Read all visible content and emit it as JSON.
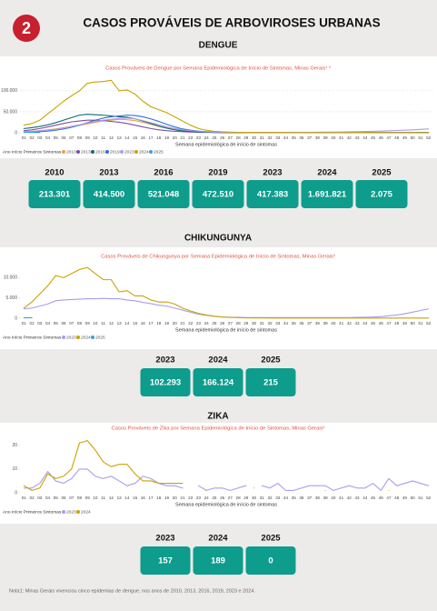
{
  "badge": "2",
  "title": "CASOS PROVÁVEIS DE ARBOVIROSES URBANAS",
  "sections": [
    {
      "heading": "DENGUE",
      "stats": [
        {
          "year": "2010",
          "value": "213.301"
        },
        {
          "year": "2013",
          "value": "414.500"
        },
        {
          "year": "2016",
          "value": "521.048"
        },
        {
          "year": "2019",
          "value": "472.510"
        },
        {
          "year": "2023",
          "value": "417.383"
        },
        {
          "year": "2024",
          "value": "1.691.821"
        },
        {
          "year": "2025",
          "value": "2.075"
        }
      ]
    },
    {
      "heading": "CHIKUNGUNYA",
      "stats": [
        {
          "year": "2023",
          "value": "102.293"
        },
        {
          "year": "2024",
          "value": "166.124"
        },
        {
          "year": "2025",
          "value": "215"
        }
      ]
    },
    {
      "heading": "ZIKA",
      "stats": [
        {
          "year": "2023",
          "value": "157"
        },
        {
          "year": "2024",
          "value": "189"
        },
        {
          "year": "2025",
          "value": "0"
        }
      ]
    }
  ],
  "chart_data": [
    {
      "type": "line",
      "title": "Casos Prováveis de Dengue por Semana Epidemiológica de Início de Sintomas, Minas Gerais¹ ²",
      "x_label": "Semana epidemiológica de início de sintomas",
      "legend_title": "Ano Início Primeiros Sintomas",
      "grid": true,
      "categories": [
        "01",
        "02",
        "03",
        "04",
        "05",
        "06",
        "07",
        "08",
        "09",
        "10",
        "11",
        "12",
        "13",
        "14",
        "15",
        "16",
        "17",
        "18",
        "19",
        "20",
        "21",
        "22",
        "23",
        "24",
        "25",
        "26",
        "27",
        "28",
        "29",
        "30",
        "31",
        "32",
        "33",
        "34",
        "35",
        "36",
        "37",
        "38",
        "39",
        "40",
        "41",
        "42",
        "43",
        "44",
        "45",
        "46",
        "47",
        "48",
        "49",
        "50",
        "51",
        "52"
      ],
      "ylim": [
        0,
        130000
      ],
      "yticks": [
        0,
        {
          "value": 50000,
          "label": "50.000"
        },
        {
          "value": 100000,
          "label": "100.000"
        }
      ],
      "series": [
        {
          "name": "2010",
          "color": "#e8a33d",
          "values": [
            2000,
            3000,
            5000,
            7000,
            9000,
            12000,
            15000,
            18000,
            21000,
            25000,
            28000,
            30000,
            32000,
            31000,
            29000,
            25000,
            20000,
            15000,
            11000,
            8000,
            5000,
            3500,
            2500,
            1800,
            1200,
            900,
            700,
            500,
            400,
            300,
            300,
            250,
            200,
            200,
            200,
            200,
            200,
            200,
            200,
            200,
            200,
            200,
            200,
            200,
            200,
            200,
            250,
            300,
            300,
            350,
            400,
            400
          ]
        },
        {
          "name": "2013",
          "color": "#7b4fa0",
          "values": [
            5000,
            7000,
            10000,
            14000,
            18000,
            22000,
            26000,
            28000,
            30000,
            30000,
            29000,
            27000,
            25000,
            22000,
            18000,
            14000,
            10000,
            7000,
            5000,
            3500,
            2500,
            1800,
            1200,
            900,
            700,
            500,
            400,
            300,
            250,
            200,
            200,
            200,
            200,
            200,
            200,
            200,
            200,
            200,
            200,
            200,
            200,
            200,
            200,
            200,
            200,
            200,
            200,
            200,
            200,
            200,
            200,
            200
          ]
        },
        {
          "name": "2016",
          "color": "#0e6b6b",
          "values": [
            10000,
            12000,
            15000,
            19000,
            24000,
            30000,
            36000,
            42000,
            44000,
            43000,
            42000,
            40000,
            38000,
            37000,
            33000,
            28000,
            22000,
            16000,
            11000,
            7000,
            4500,
            3000,
            2000,
            1400,
            1000,
            700,
            500,
            400,
            300,
            300,
            250,
            250,
            200,
            200,
            200,
            200,
            200,
            200,
            200,
            200,
            200,
            200,
            200,
            200,
            200,
            200,
            200,
            200,
            250,
            250,
            300,
            300
          ]
        },
        {
          "name": "2019",
          "color": "#2f6fd6",
          "values": [
            1000,
            1500,
            2500,
            4000,
            6000,
            9000,
            13000,
            18000,
            24000,
            30000,
            35000,
            38000,
            40000,
            42000,
            41000,
            38000,
            33000,
            27000,
            20000,
            14000,
            9000,
            6000,
            4000,
            2500,
            1700,
            1200,
            800,
            600,
            500,
            400,
            350,
            300,
            300,
            300,
            300,
            300,
            300,
            300,
            300,
            300,
            300,
            300,
            300,
            300,
            300,
            300,
            300,
            300,
            300,
            300,
            300,
            300
          ]
        },
        {
          "name": "2023",
          "color": "#a99cf0",
          "values": [
            3000,
            3500,
            4500,
            6000,
            8000,
            11000,
            15000,
            19000,
            23000,
            27000,
            30000,
            32000,
            34000,
            35000,
            33000,
            29000,
            24000,
            19000,
            14000,
            10000,
            7000,
            5000,
            3500,
            2500,
            1800,
            1300,
            1000,
            800,
            700,
            600,
            600,
            600,
            700,
            800,
            900,
            1000,
            1100,
            1200,
            1400,
            1600,
            1900,
            2200,
            2600,
            3000,
            3500,
            4000,
            4700,
            5400,
            6200,
            7000,
            8000,
            9000
          ]
        },
        {
          "name": "2024",
          "color": "#c9a400",
          "values": [
            18000,
            22000,
            30000,
            45000,
            60000,
            75000,
            88000,
            100000,
            118000,
            121000,
            122000,
            125000,
            100000,
            102000,
            92000,
            75000,
            62000,
            55000,
            48000,
            38000,
            28000,
            18000,
            10000,
            6000,
            3500,
            2200,
            1500,
            1100,
            900,
            800,
            700,
            600,
            600,
            500,
            500,
            500,
            500,
            500,
            500,
            500,
            500,
            500,
            500,
            500,
            500,
            500,
            500,
            500,
            500,
            500,
            500,
            500
          ]
        },
        {
          "name": "2025",
          "color": "#3aa0e0",
          "values": [
            900,
            800,
            300,
            null,
            null,
            null,
            null,
            null,
            null,
            null,
            null,
            null,
            null,
            null,
            null,
            null,
            null,
            null,
            null,
            null,
            null,
            null,
            null,
            null,
            null,
            null,
            null,
            null,
            null,
            null,
            null,
            null,
            null,
            null,
            null,
            null,
            null,
            null,
            null,
            null,
            null,
            null,
            null,
            null,
            null,
            null,
            null,
            null,
            null,
            null,
            null,
            null
          ]
        }
      ]
    },
    {
      "type": "line",
      "title": "Casos Prováveis de Chikungunya por Semana Epidemiológica de Início de Sintomas, Minas Gerais²",
      "x_label": "Semana epidemiológica de início de sintomas",
      "legend_title": "Ano Início Primeiros Sintomas",
      "grid": false,
      "categories": [
        "01",
        "02",
        "03",
        "04",
        "05",
        "06",
        "07",
        "08",
        "09",
        "10",
        "11",
        "12",
        "13",
        "14",
        "15",
        "16",
        "17",
        "18",
        "19",
        "20",
        "21",
        "22",
        "23",
        "24",
        "25",
        "26",
        "27",
        "28",
        "29",
        "30",
        "31",
        "32",
        "33",
        "34",
        "35",
        "36",
        "37",
        "38",
        "39",
        "40",
        "41",
        "42",
        "43",
        "44",
        "45",
        "46",
        "47",
        "48",
        "49",
        "50",
        "51",
        "52"
      ],
      "ylim": [
        0,
        13000
      ],
      "yticks": [
        0,
        {
          "value": 5000,
          "label": "5.000"
        },
        {
          "value": 10000,
          "label": "10.000"
        }
      ],
      "series": [
        {
          "name": "2023",
          "color": "#a99cf0",
          "values": [
            2300,
            2500,
            3000,
            3500,
            4300,
            4500,
            4600,
            4700,
            4800,
            4800,
            4900,
            4800,
            4800,
            4500,
            4300,
            3900,
            3600,
            3200,
            3000,
            2500,
            2000,
            1500,
            1000,
            700,
            500,
            300,
            250,
            200,
            150,
            150,
            150,
            150,
            150,
            150,
            150,
            150,
            150,
            150,
            150,
            150,
            150,
            150,
            200,
            250,
            300,
            400,
            600,
            800,
            1100,
            1500,
            1900,
            2300
          ]
        },
        {
          "name": "2024",
          "color": "#c9a400",
          "values": [
            2500,
            4000,
            6000,
            8000,
            10500,
            10000,
            11000,
            12000,
            12500,
            11000,
            9500,
            9500,
            6500,
            6800,
            5500,
            5500,
            4500,
            4000,
            4000,
            3500,
            2500,
            1800,
            1200,
            800,
            500,
            300,
            200,
            150,
            100,
            80,
            60,
            50,
            50,
            50,
            50,
            50,
            50,
            50,
            50,
            50,
            50,
            50,
            50,
            50,
            50,
            50,
            50,
            50,
            50,
            50,
            50,
            50
          ]
        },
        {
          "name": "2025",
          "color": "#3aa0e0",
          "values": [
            100,
            120,
            null,
            null,
            null,
            null,
            null,
            null,
            null,
            null,
            null,
            null,
            null,
            null,
            null,
            null,
            null,
            null,
            null,
            null,
            null,
            null,
            null,
            null,
            null,
            null,
            null,
            null,
            null,
            null,
            null,
            null,
            null,
            null,
            null,
            null,
            null,
            null,
            null,
            null,
            null,
            null,
            null,
            null,
            null,
            null,
            null,
            null,
            null,
            null,
            null,
            null
          ]
        }
      ]
    },
    {
      "type": "line",
      "title": "Casos Prováveis de Zika por Semana Epidemiológica de Início de Sintomas, Minas Gerais²",
      "x_label": "Semana epidemiológica de início de sintomas",
      "legend_title": "Ano Início Primeiros Sintomas",
      "grid": false,
      "categories": [
        "01",
        "02",
        "03",
        "04",
        "05",
        "06",
        "07",
        "08",
        "09",
        "10",
        "11",
        "12",
        "13",
        "14",
        "15",
        "16",
        "17",
        "18",
        "19",
        "20",
        "21",
        "22",
        "23",
        "24",
        "25",
        "26",
        "27",
        "28",
        "29",
        "30",
        "31",
        "32",
        "33",
        "34",
        "35",
        "36",
        "37",
        "38",
        "39",
        "40",
        "41",
        "42",
        "43",
        "44",
        "45",
        "46",
        "47",
        "48",
        "49",
        "50",
        "51",
        "52"
      ],
      "ylim": [
        0,
        23
      ],
      "yticks": [
        0,
        10,
        20
      ],
      "series": [
        {
          "name": "2023",
          "color": "#a99cf0",
          "values": [
            2,
            2,
            4,
            9,
            5,
            4,
            6,
            10,
            10,
            7,
            6,
            7,
            5,
            3,
            4,
            7,
            6,
            4,
            3,
            3,
            2,
            null,
            3,
            1,
            2,
            2,
            1,
            2,
            3,
            null,
            3,
            2,
            4,
            1,
            1,
            2,
            3,
            3,
            3,
            1,
            2,
            3,
            2,
            2,
            4,
            1,
            6,
            3,
            4,
            5,
            4,
            3
          ]
        },
        {
          "name": "2024",
          "color": "#c9a400",
          "values": [
            3,
            1,
            2,
            8,
            6,
            7,
            10,
            21,
            22,
            18,
            13,
            11,
            12,
            12,
            8,
            5,
            5,
            4,
            4,
            4,
            4,
            null,
            null,
            1,
            null,
            null,
            null,
            null,
            null,
            2,
            null,
            null,
            null,
            null,
            null,
            null,
            null,
            null,
            1,
            null,
            null,
            null,
            null,
            null,
            null,
            null,
            1,
            null,
            null,
            null,
            null,
            null
          ]
        }
      ]
    }
  ],
  "note": "Nota1: Minas Gerais vivenciou cinco epidemias de dengue, nos anos de 2010, 2013, 2016, 2019, 2023 e 2024."
}
